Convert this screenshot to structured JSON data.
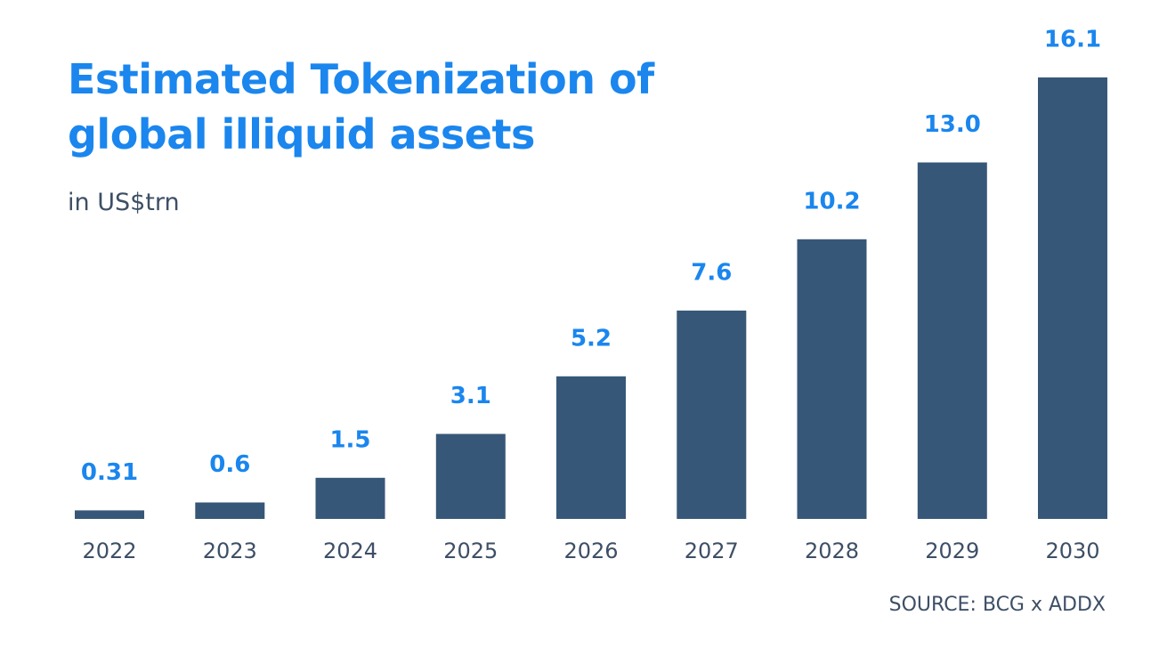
{
  "chart_data": {
    "type": "bar",
    "title": "Estimated Tokenization of global illiquid assets",
    "subtitle": "in US$trn",
    "categories": [
      "2022",
      "2023",
      "2024",
      "2025",
      "2026",
      "2027",
      "2028",
      "2029",
      "2030"
    ],
    "values": [
      0.31,
      0.6,
      1.5,
      3.1,
      5.2,
      7.6,
      10.2,
      13.0,
      16.1
    ],
    "value_labels": [
      "0.31",
      "0.6",
      "1.5",
      "3.1",
      "5.2",
      "7.6",
      "10.2",
      "13.0",
      "16.1"
    ],
    "ylim": [
      0,
      16.1
    ],
    "grid": false,
    "legend": "none",
    "colors": {
      "bar": "#375778",
      "value_label": "#1a86ee",
      "title": "#1a86ee",
      "text": "#3d4f66"
    },
    "source": "SOURCE: BCG x ADDX"
  }
}
